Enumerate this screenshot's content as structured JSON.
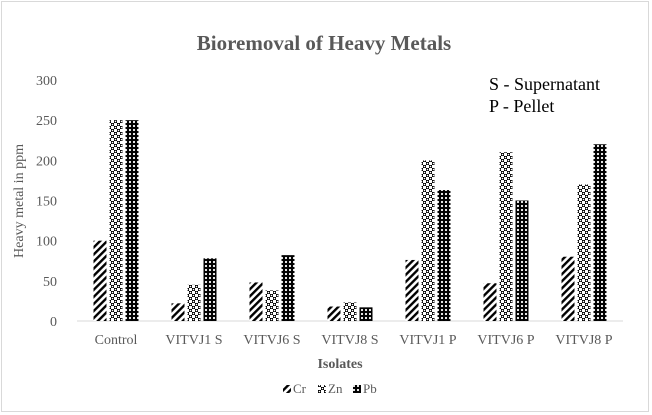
{
  "chart_data": {
    "type": "bar",
    "title": "Bioremoval of Heavy Metals",
    "xlabel": "Isolates",
    "ylabel": "Heavy metal in ppm",
    "ylim": [
      0,
      300
    ],
    "yticks": [
      0,
      50,
      100,
      150,
      200,
      250,
      300
    ],
    "grid": false,
    "legend_position": "bottom",
    "categories": [
      "Control",
      "VITVJ1 S",
      "VITVJ6 S",
      "VITVJ8 S",
      "VITVJ1 P",
      "VITVJ6 P",
      "VITVJ8 P"
    ],
    "series": [
      {
        "name": "Cr",
        "pattern": "diagonal-stripes",
        "values": [
          100,
          22,
          48,
          18,
          76,
          47,
          80
        ]
      },
      {
        "name": "Zn",
        "pattern": "checkered-dots",
        "values": [
          250,
          45,
          38,
          23,
          200,
          210,
          170
        ]
      },
      {
        "name": "Pb",
        "pattern": "dense-dots",
        "values": [
          250,
          78,
          82,
          17,
          163,
          150,
          220
        ]
      }
    ],
    "annotations": [
      "S - Supernatant",
      "P - Pellet"
    ]
  },
  "colors": {
    "pattern_ink": "#000000",
    "text": "#595959",
    "axis": "#d9d9d9"
  }
}
